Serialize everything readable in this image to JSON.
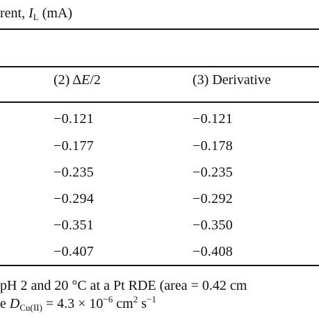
{
  "table": {
    "title": {
      "prefix": "rent, ",
      "symbol": "I",
      "symbol_sub": "L",
      "suffix": " (mA)"
    },
    "columns": [
      {
        "number": "(2) ",
        "delta": "Δ",
        "var": "E",
        "tail": "/2"
      },
      {
        "label": "(3) Derivative"
      }
    ],
    "rows": [
      [
        "−0.121",
        "−0.121"
      ],
      [
        "−0.177",
        "−0.178"
      ],
      [
        "−0.235",
        "−0.235"
      ],
      [
        "−0.294",
        "−0.292"
      ],
      [
        "−0.351",
        "−0.350"
      ],
      [
        "−0.407",
        "−0.408"
      ]
    ]
  },
  "footnote": {
    "line1": "pH 2 and 20 °C at a Pt RDE (area = 0.42 cm",
    "line2_prefix": "e ",
    "D_symbol": "D",
    "D_sub": "Cu(II)",
    "line2_mid": " = 4.3 × 10",
    "exp1": "−6",
    "unit1": " cm",
    "exp2": "2",
    "unit2": " s",
    "exp3": "−1"
  }
}
